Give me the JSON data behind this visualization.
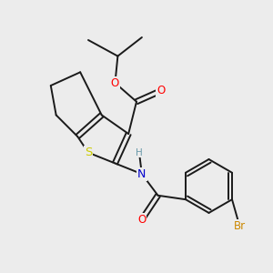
{
  "bg_color": "#ececec",
  "bond_color": "#1a1a1a",
  "bond_width": 1.4,
  "atom_colors": {
    "O": "#ff0000",
    "N": "#0000cd",
    "S": "#cccc00",
    "Br": "#cc8800",
    "H": "#6a9aaa",
    "C": "#1a1a1a"
  },
  "font_size": 8.5,
  "fig_bg": "#ececec"
}
